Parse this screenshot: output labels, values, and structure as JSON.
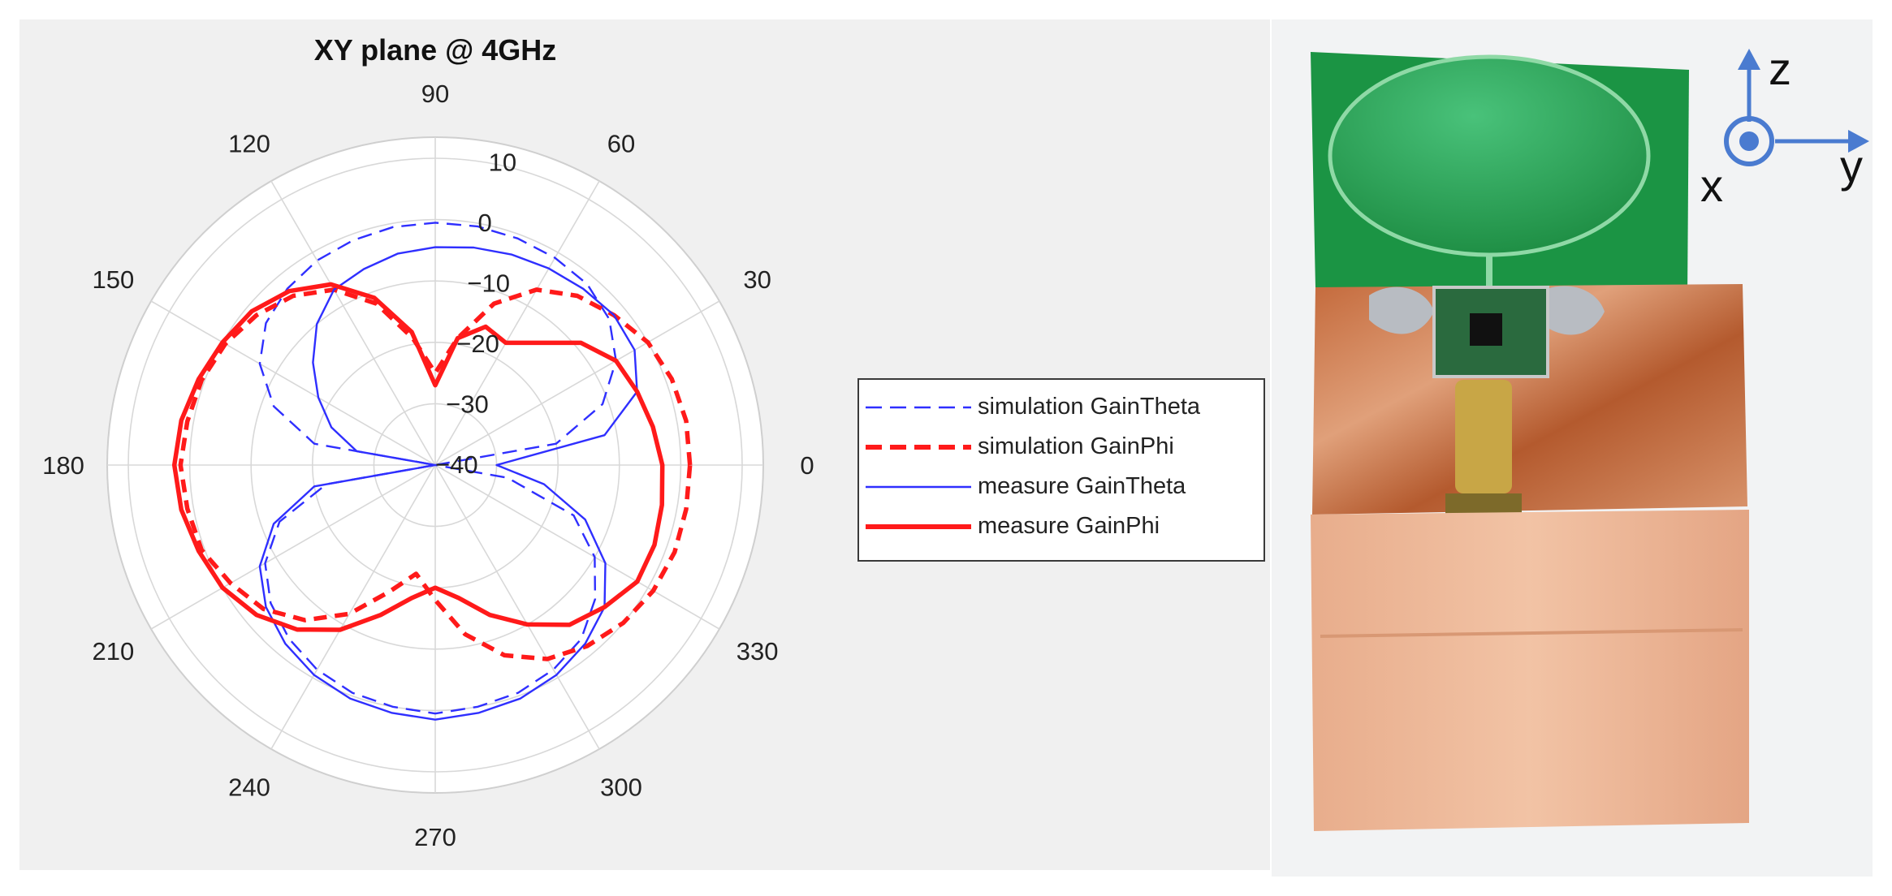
{
  "figure": {
    "colors": {
      "blue": "#2f2fff",
      "red": "#ff1a1a",
      "panel_bg": "#f0f0f0"
    }
  },
  "chart_data": {
    "type": "polar",
    "title": "XY plane @ 4GHz",
    "angle_unit": "degrees",
    "angle_ticks": [
      0,
      30,
      60,
      90,
      120,
      150,
      180,
      210,
      240,
      270,
      300,
      330
    ],
    "angle_tick_labels": [
      "0",
      "30",
      "60",
      "90",
      "120",
      "150",
      "180",
      "210",
      "240",
      "270",
      "300",
      "330"
    ],
    "r_ticks": [
      -40,
      -30,
      -20,
      -10,
      0,
      10
    ],
    "r_tick_labels": [
      "−40",
      "−30",
      "−20",
      "−10",
      "0",
      "10"
    ],
    "rlim": [
      -40,
      10
    ],
    "grid": true,
    "legend": "right",
    "series": [
      {
        "name": "simulation GainTheta",
        "color": "#2f2fff",
        "style": "dashed",
        "width": "thin",
        "theta": [
          0,
          10,
          20,
          30,
          40,
          50,
          60,
          70,
          80,
          90,
          100,
          110,
          120,
          130,
          140,
          150,
          160,
          170,
          180,
          190,
          200,
          210,
          220,
          230,
          240,
          250,
          260,
          270,
          280,
          290,
          300,
          310,
          320,
          330,
          340,
          350
        ],
        "r": [
          -40,
          -20,
          -11,
          -6,
          -3,
          -1.5,
          -1,
          -0.7,
          -0.5,
          -0.5,
          -0.6,
          -1,
          -1.5,
          -2.5,
          -4,
          -7,
          -12,
          -20,
          -40,
          -22,
          -13,
          -8,
          -5,
          -3,
          -1.5,
          -0.5,
          0,
          0.5,
          0,
          -0.5,
          -1.5,
          -3,
          -6,
          -10,
          -16,
          -28
        ]
      },
      {
        "name": "simulation GainPhi",
        "color": "#ff1a1a",
        "style": "dashed",
        "width": "thick",
        "theta": [
          0,
          10,
          20,
          30,
          40,
          50,
          60,
          70,
          80,
          90,
          100,
          110,
          120,
          130,
          140,
          150,
          160,
          170,
          180,
          190,
          200,
          210,
          220,
          230,
          240,
          250,
          260,
          270,
          280,
          290,
          300,
          310,
          320,
          330,
          340,
          350
        ],
        "r": [
          1.5,
          1.5,
          1,
          0,
          -2,
          -4,
          -7,
          -12,
          -19,
          -25,
          -19,
          -12,
          -7,
          -4,
          -2,
          -0.5,
          0.5,
          1,
          1.5,
          1,
          0.5,
          -1.5,
          -3.5,
          -7,
          -12,
          -18,
          -22,
          -18,
          -12,
          -7,
          -3.5,
          -1.5,
          0,
          1,
          1.5,
          1.5
        ]
      },
      {
        "name": "measure GainTheta",
        "color": "#2f2fff",
        "style": "solid",
        "width": "thin",
        "theta": [
          0,
          10,
          20,
          30,
          40,
          50,
          60,
          70,
          80,
          90,
          100,
          110,
          120,
          130,
          140,
          150,
          160,
          170,
          180,
          190,
          200,
          210,
          220,
          230,
          240,
          250,
          260,
          270,
          280,
          290,
          300,
          310,
          320,
          330,
          340,
          350
        ],
        "r": [
          -30,
          -12,
          -5,
          -2.5,
          -2,
          -2.5,
          -3,
          -3.5,
          -4,
          -4.5,
          -5,
          -6,
          -7,
          -10,
          -14,
          -18,
          -22,
          -27,
          -40,
          -20,
          -12,
          -7,
          -4,
          -2,
          -0.5,
          0.5,
          1,
          1.5,
          1,
          0.5,
          -0.5,
          -2,
          -4,
          -8,
          -14,
          -22
        ]
      },
      {
        "name": "measure GainPhi",
        "color": "#ff1a1a",
        "style": "solid",
        "width": "thick",
        "theta": [
          0,
          10,
          20,
          30,
          40,
          50,
          60,
          70,
          80,
          90,
          100,
          110,
          120,
          130,
          140,
          150,
          160,
          170,
          180,
          190,
          200,
          210,
          220,
          230,
          240,
          250,
          260,
          270,
          280,
          290,
          300,
          310,
          320,
          330,
          340,
          350
        ],
        "r": [
          -3,
          -4,
          -5,
          -6,
          -9,
          -14,
          -17,
          -16,
          -19,
          -27,
          -18,
          -11,
          -6,
          -3,
          -1,
          0,
          1,
          2,
          2.5,
          2,
          1,
          0,
          -2,
          -5,
          -9,
          -14,
          -18,
          -20,
          -18,
          -14,
          -10,
          -6,
          -4,
          -2,
          -2,
          -2.5
        ]
      }
    ]
  },
  "photo": {
    "axis_labels": {
      "z": "z",
      "x": "x",
      "y": "y"
    }
  }
}
